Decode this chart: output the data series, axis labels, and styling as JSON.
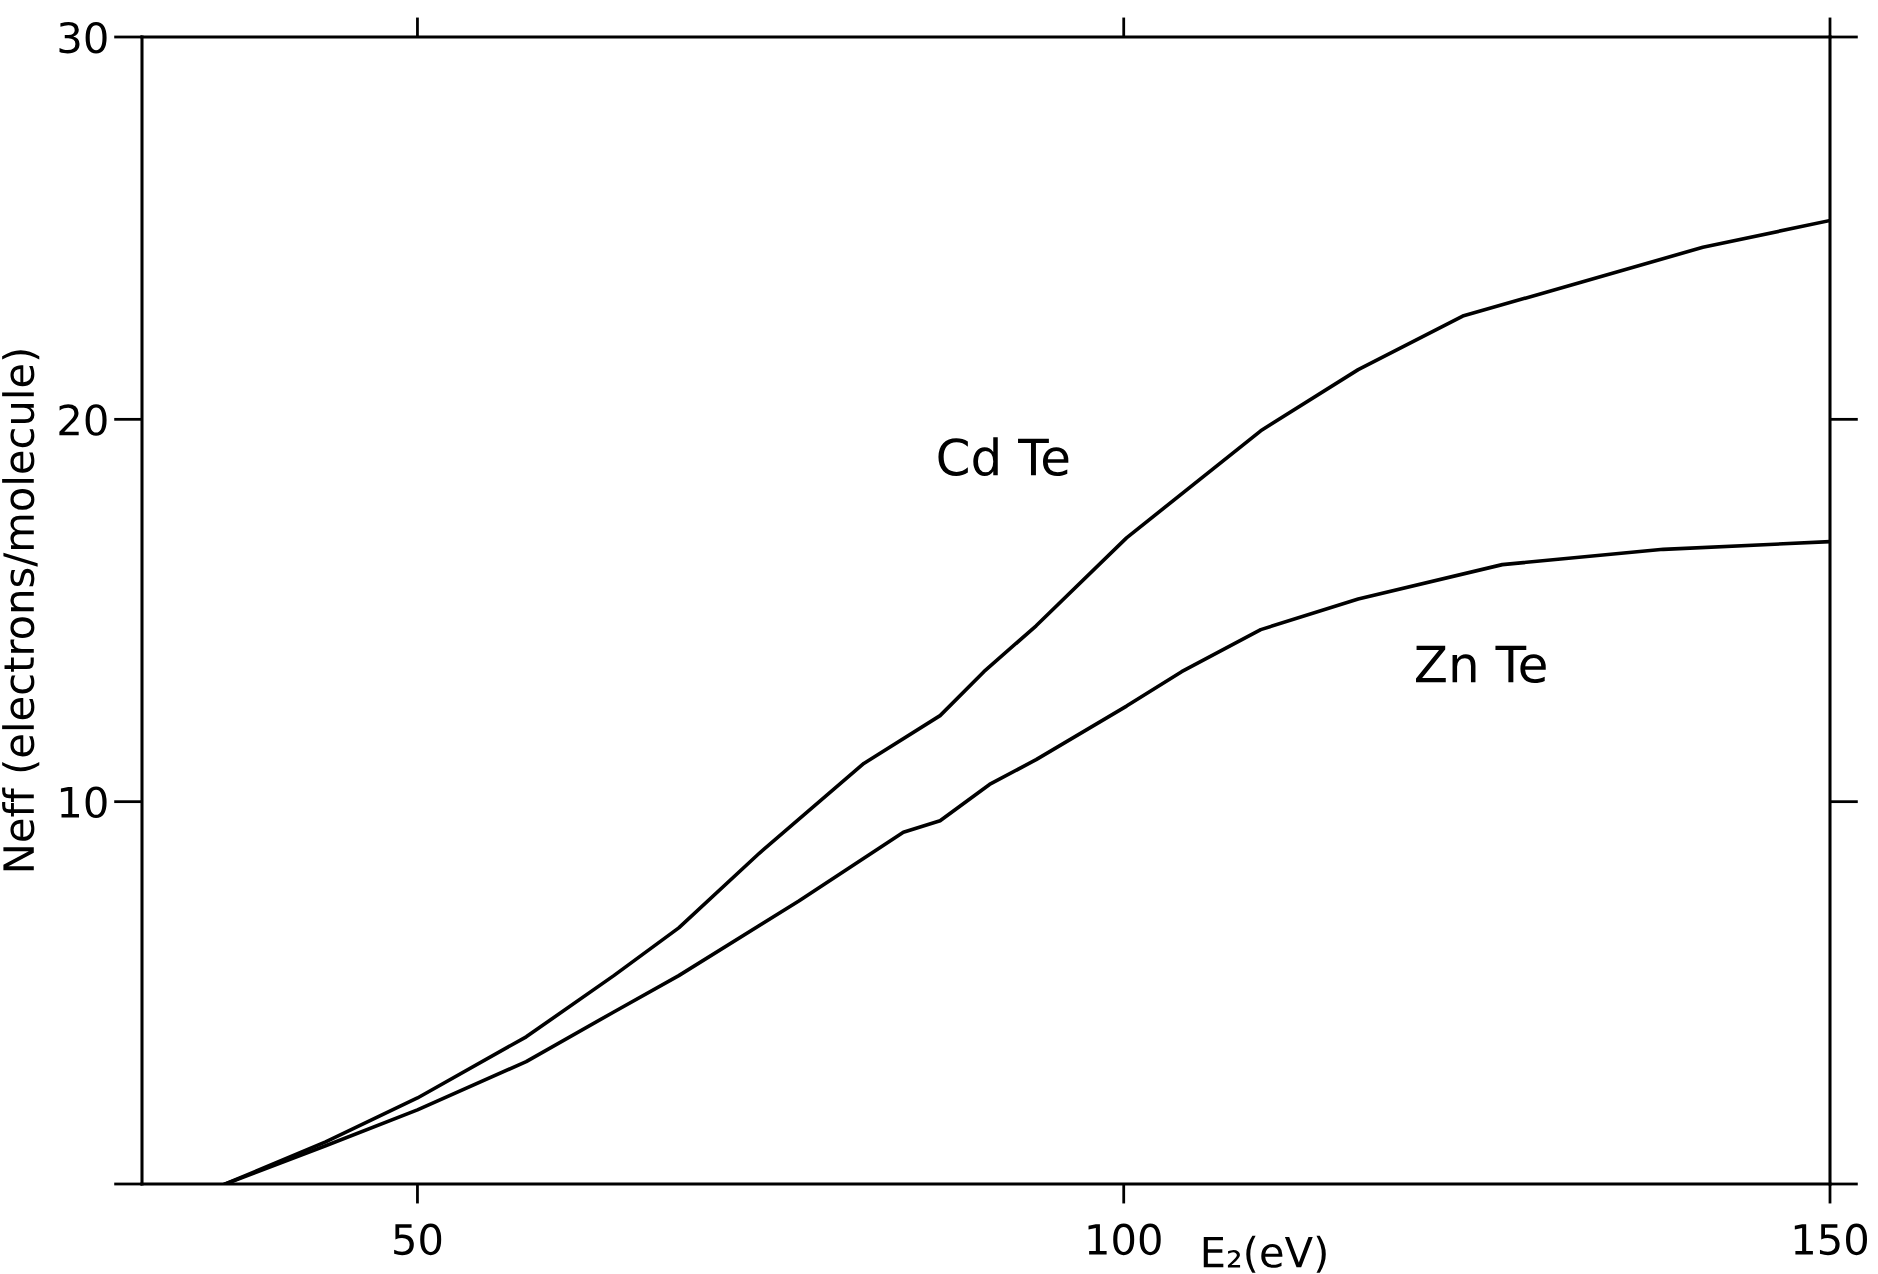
{
  "chart_data": {
    "type": "line",
    "xlabel": "E₂(eV)",
    "ylabel": "Neff (electrons/molecule)",
    "xlim": [
      30.5,
      150
    ],
    "ylim": [
      0,
      30
    ],
    "xticks": [
      50,
      100,
      150
    ],
    "yticks": [
      {
        "value": 0,
        "label": null
      },
      10,
      20,
      30
    ],
    "grid": false,
    "legend": false,
    "marker": "none",
    "line_style": "solid",
    "series": [
      {
        "name": "Cd Te",
        "color": "#000000",
        "x": [
          36.4,
          43.5,
          50,
          57.7,
          63.9,
          68.5,
          74.2,
          81.6,
          87.0,
          90.1,
          93.8,
          100.2,
          109.7,
          116.6,
          124.0,
          132.5,
          141.0,
          150
        ],
        "values": [
          0,
          1.1,
          2.25,
          3.85,
          5.45,
          6.7,
          8.65,
          11.0,
          12.25,
          13.4,
          14.6,
          16.9,
          19.7,
          21.3,
          22.7,
          23.6,
          24.5,
          25.2
        ]
      },
      {
        "name": "Zn Te",
        "color": "#000000",
        "x": [
          36.4,
          43.5,
          50,
          57.7,
          63.9,
          68.5,
          77.0,
          84.4,
          87.0,
          90.5,
          93.8,
          100.2,
          104.1,
          109.7,
          116.6,
          126.8,
          138.2,
          150
        ],
        "values": [
          0,
          1.0,
          1.94,
          3.2,
          4.5,
          5.45,
          7.4,
          9.2,
          9.5,
          10.45,
          11.1,
          12.5,
          13.4,
          14.5,
          15.3,
          16.2,
          16.6,
          16.8
        ]
      }
    ]
  }
}
